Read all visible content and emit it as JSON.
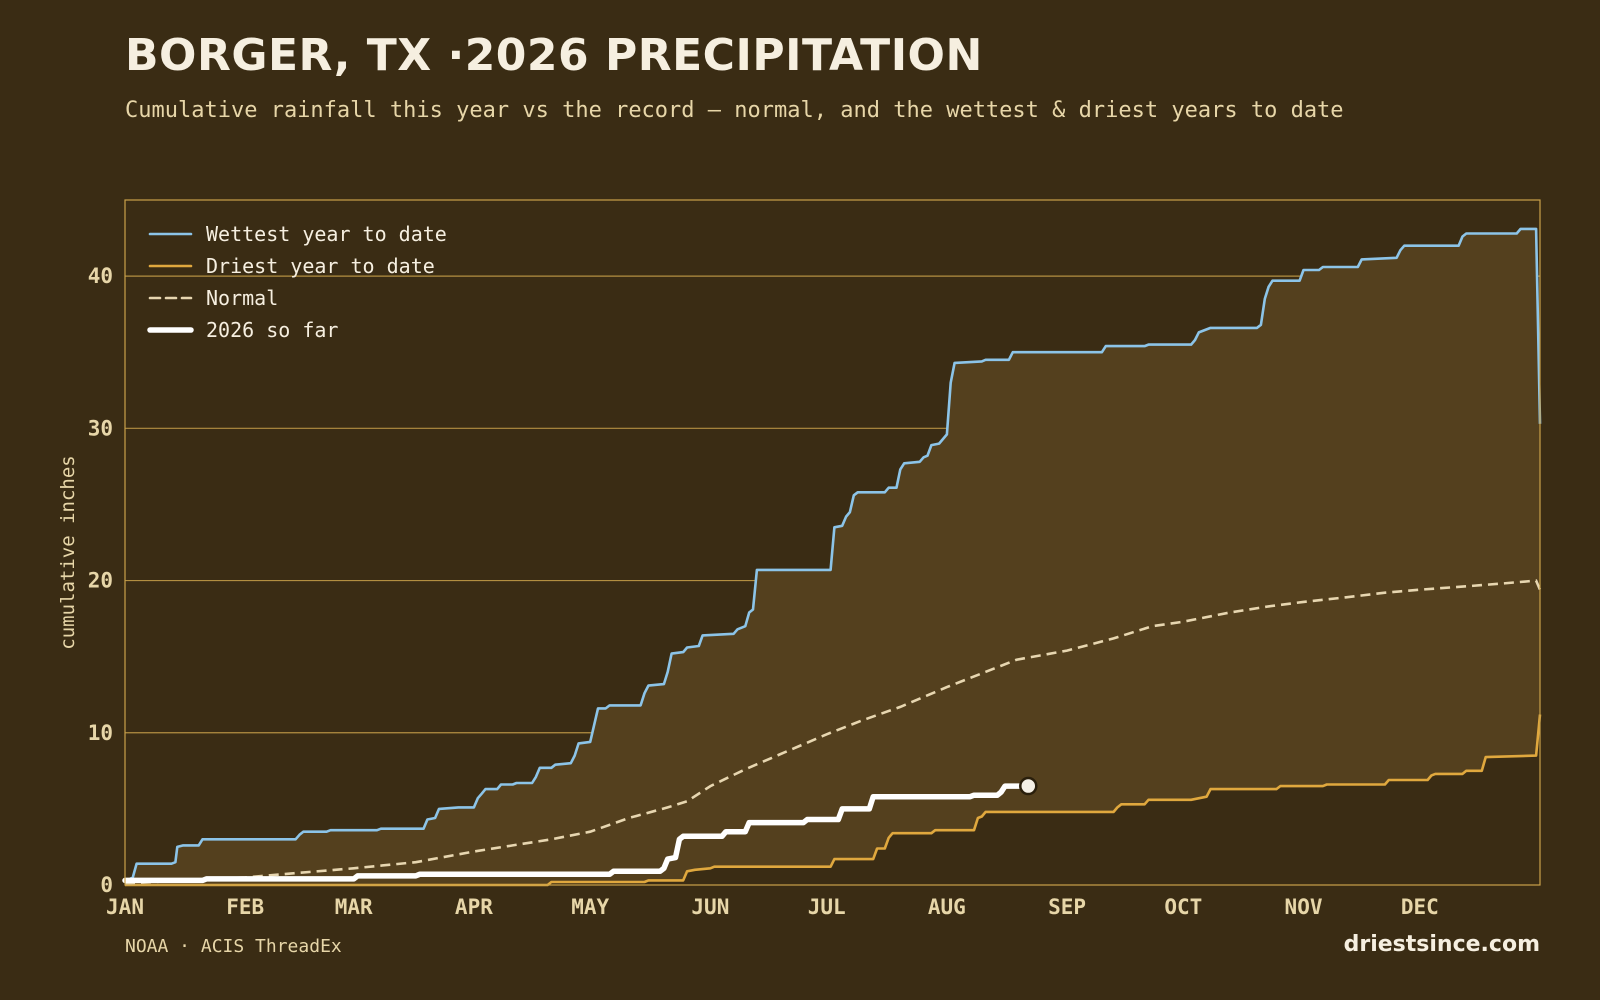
{
  "header": {
    "title": "BORGER, TX ·2026 PRECIPITATION",
    "subtitle": "Cumulative rainfall this year vs the record — normal, and the wettest & driest years to date"
  },
  "footer": {
    "source": "NOAA · ACIS ThreadEx",
    "brand": "driestsince.com"
  },
  "colors": {
    "background": "#3a2c14",
    "band_fill": "#54401e",
    "grid": "#c9a14a",
    "wettest": "#8cc4e8",
    "driest": "#e0a83e",
    "normal": "#e7d6b0",
    "current": "#ffffff"
  },
  "chart_data": {
    "type": "line",
    "title": "BORGER, TX ·2026 PRECIPITATION",
    "subtitle": "Cumulative rainfall this year vs the record — normal, and the wettest & driest years to date",
    "ylabel": "cumulative inches",
    "xlabel": "",
    "xlim": [
      0,
      365
    ],
    "ylim": [
      0,
      45
    ],
    "yticks": [
      0,
      10,
      20,
      30,
      40
    ],
    "month_ticks": [
      {
        "label": "JAN",
        "day": 0
      },
      {
        "label": "FEB",
        "day": 31
      },
      {
        "label": "MAR",
        "day": 59
      },
      {
        "label": "APR",
        "day": 90
      },
      {
        "label": "MAY",
        "day": 120
      },
      {
        "label": "JUN",
        "day": 151
      },
      {
        "label": "JUL",
        "day": 181
      },
      {
        "label": "AUG",
        "day": 212
      },
      {
        "label": "SEP",
        "day": 243
      },
      {
        "label": "OCT",
        "day": 273
      },
      {
        "label": "NOV",
        "day": 304
      },
      {
        "label": "DEC",
        "day": 334
      }
    ],
    "grid": true,
    "legend_position": "top-left",
    "series": [
      {
        "name": "Wettest year to date",
        "style": "solid",
        "points": [
          [
            0,
            0.2
          ],
          [
            2,
            0.5
          ],
          [
            3,
            1.4
          ],
          [
            12,
            1.4
          ],
          [
            13,
            1.5
          ],
          [
            13.5,
            2.5
          ],
          [
            15,
            2.6
          ],
          [
            19,
            2.6
          ],
          [
            20,
            3.0
          ],
          [
            44,
            3.0
          ],
          [
            45,
            3.3
          ],
          [
            46,
            3.5
          ],
          [
            52,
            3.5
          ],
          [
            53,
            3.6
          ],
          [
            65,
            3.6
          ],
          [
            66,
            3.7
          ],
          [
            77,
            3.7
          ],
          [
            78,
            4.3
          ],
          [
            80,
            4.4
          ],
          [
            81,
            5.0
          ],
          [
            86,
            5.1
          ],
          [
            90,
            5.1
          ],
          [
            91,
            5.7
          ],
          [
            92,
            6.0
          ],
          [
            93,
            6.3
          ],
          [
            96,
            6.3
          ],
          [
            97,
            6.6
          ],
          [
            100,
            6.6
          ],
          [
            101,
            6.7
          ],
          [
            105,
            6.7
          ],
          [
            106,
            7.1
          ],
          [
            107,
            7.7
          ],
          [
            110,
            7.7
          ],
          [
            111,
            7.9
          ],
          [
            115,
            8.0
          ],
          [
            116,
            8.5
          ],
          [
            117,
            9.3
          ],
          [
            120,
            9.4
          ],
          [
            121,
            10.5
          ],
          [
            122,
            11.6
          ],
          [
            124,
            11.6
          ],
          [
            125,
            11.8
          ],
          [
            133,
            11.8
          ],
          [
            134,
            12.6
          ],
          [
            135,
            13.1
          ],
          [
            139,
            13.2
          ],
          [
            140,
            14.0
          ],
          [
            141,
            15.2
          ],
          [
            144,
            15.3
          ],
          [
            145,
            15.6
          ],
          [
            148,
            15.7
          ],
          [
            149,
            16.4
          ],
          [
            157,
            16.5
          ],
          [
            158,
            16.8
          ],
          [
            160,
            17.0
          ],
          [
            161,
            17.9
          ],
          [
            162,
            18.1
          ],
          [
            163,
            20.7
          ],
          [
            182,
            20.7
          ],
          [
            183,
            23.5
          ],
          [
            185,
            23.6
          ],
          [
            186,
            24.2
          ],
          [
            187,
            24.5
          ],
          [
            188,
            25.6
          ],
          [
            189,
            25.8
          ],
          [
            196,
            25.8
          ],
          [
            197,
            26.1
          ],
          [
            199,
            26.1
          ],
          [
            200,
            27.3
          ],
          [
            201,
            27.7
          ],
          [
            205,
            27.8
          ],
          [
            206,
            28.1
          ],
          [
            207,
            28.2
          ],
          [
            208,
            28.9
          ],
          [
            210,
            29.0
          ],
          [
            212,
            29.6
          ],
          [
            213,
            33.0
          ],
          [
            214,
            34.3
          ],
          [
            221,
            34.4
          ],
          [
            222,
            34.5
          ],
          [
            228,
            34.5
          ],
          [
            229,
            35.0
          ],
          [
            252,
            35.0
          ],
          [
            253,
            35.4
          ],
          [
            263,
            35.4
          ],
          [
            264,
            35.5
          ],
          [
            275,
            35.5
          ],
          [
            276,
            35.8
          ],
          [
            277,
            36.3
          ],
          [
            280,
            36.6
          ],
          [
            292,
            36.6
          ],
          [
            293,
            36.8
          ],
          [
            294,
            38.5
          ],
          [
            295,
            39.3
          ],
          [
            296,
            39.7
          ],
          [
            303,
            39.7
          ],
          [
            304,
            40.4
          ],
          [
            308,
            40.4
          ],
          [
            309,
            40.6
          ],
          [
            318,
            40.6
          ],
          [
            319,
            41.1
          ],
          [
            328,
            41.2
          ],
          [
            329,
            41.7
          ],
          [
            330,
            42.0
          ],
          [
            344,
            42.0
          ],
          [
            345,
            42.6
          ],
          [
            346,
            42.8
          ],
          [
            359,
            42.8
          ],
          [
            360,
            43.1
          ],
          [
            364,
            43.1
          ],
          [
            365,
            30.3
          ]
        ]
      },
      {
        "name": "Driest year to date",
        "style": "solid",
        "points": [
          [
            0,
            0
          ],
          [
            109,
            0
          ],
          [
            110,
            0.2
          ],
          [
            134,
            0.2
          ],
          [
            135,
            0.3
          ],
          [
            144,
            0.3
          ],
          [
            145,
            0.9
          ],
          [
            147,
            1.0
          ],
          [
            151,
            1.1
          ],
          [
            152,
            1.2
          ],
          [
            182,
            1.2
          ],
          [
            183,
            1.7
          ],
          [
            193,
            1.7
          ],
          [
            194,
            2.4
          ],
          [
            196,
            2.4
          ],
          [
            197,
            3.1
          ],
          [
            198,
            3.4
          ],
          [
            208,
            3.4
          ],
          [
            209,
            3.6
          ],
          [
            219,
            3.6
          ],
          [
            220,
            4.4
          ],
          [
            221,
            4.5
          ],
          [
            222,
            4.8
          ],
          [
            255,
            4.8
          ],
          [
            256,
            5.1
          ],
          [
            257,
            5.3
          ],
          [
            263,
            5.3
          ],
          [
            264,
            5.6
          ],
          [
            275,
            5.6
          ],
          [
            279,
            5.8
          ],
          [
            280,
            6.3
          ],
          [
            297,
            6.3
          ],
          [
            298,
            6.5
          ],
          [
            309,
            6.5
          ],
          [
            310,
            6.6
          ],
          [
            325,
            6.6
          ],
          [
            326,
            6.9
          ],
          [
            336,
            6.9
          ],
          [
            337,
            7.2
          ],
          [
            338,
            7.3
          ],
          [
            345,
            7.3
          ],
          [
            346,
            7.5
          ],
          [
            350,
            7.5
          ],
          [
            351,
            8.4
          ],
          [
            364,
            8.5
          ],
          [
            365,
            11.2
          ]
        ]
      },
      {
        "name": "Normal",
        "style": "dashed",
        "points": [
          [
            0,
            0.1
          ],
          [
            15,
            0.3
          ],
          [
            31,
            0.5
          ],
          [
            45,
            0.8
          ],
          [
            59,
            1.1
          ],
          [
            75,
            1.5
          ],
          [
            90,
            2.2
          ],
          [
            100,
            2.6
          ],
          [
            110,
            3.0
          ],
          [
            120,
            3.5
          ],
          [
            130,
            4.4
          ],
          [
            140,
            5.1
          ],
          [
            145,
            5.5
          ],
          [
            151,
            6.5
          ],
          [
            160,
            7.6
          ],
          [
            170,
            8.7
          ],
          [
            181,
            9.9
          ],
          [
            190,
            10.8
          ],
          [
            200,
            11.7
          ],
          [
            212,
            13.0
          ],
          [
            220,
            13.8
          ],
          [
            230,
            14.8
          ],
          [
            243,
            15.4
          ],
          [
            255,
            16.2
          ],
          [
            265,
            17.0
          ],
          [
            273,
            17.3
          ],
          [
            285,
            17.9
          ],
          [
            295,
            18.3
          ],
          [
            304,
            18.6
          ],
          [
            315,
            18.9
          ],
          [
            325,
            19.2
          ],
          [
            334,
            19.4
          ],
          [
            345,
            19.6
          ],
          [
            355,
            19.8
          ],
          [
            364,
            20.0
          ],
          [
            365,
            19.4
          ]
        ]
      },
      {
        "name": "2026 so far",
        "style": "thick",
        "points": [
          [
            0,
            0.3
          ],
          [
            20,
            0.3
          ],
          [
            21,
            0.4
          ],
          [
            59,
            0.4
          ],
          [
            60,
            0.6
          ],
          [
            75,
            0.6
          ],
          [
            76,
            0.7
          ],
          [
            125,
            0.7
          ],
          [
            126,
            0.9
          ],
          [
            138,
            0.9
          ],
          [
            139,
            1.1
          ],
          [
            140,
            1.7
          ],
          [
            142,
            1.8
          ],
          [
            143,
            3.0
          ],
          [
            144,
            3.2
          ],
          [
            154,
            3.2
          ],
          [
            155,
            3.5
          ],
          [
            160,
            3.5
          ],
          [
            161,
            4.1
          ],
          [
            175,
            4.1
          ],
          [
            176,
            4.3
          ],
          [
            184,
            4.3
          ],
          [
            185,
            5.0
          ],
          [
            192,
            5.0
          ],
          [
            193,
            5.8
          ],
          [
            218,
            5.8
          ],
          [
            219,
            5.9
          ],
          [
            225,
            5.9
          ],
          [
            226,
            6.1
          ],
          [
            227,
            6.5
          ],
          [
            230,
            6.5
          ],
          [
            233,
            6.5
          ]
        ]
      }
    ],
    "current_marker": {
      "day": 233,
      "value": 6.5
    }
  }
}
